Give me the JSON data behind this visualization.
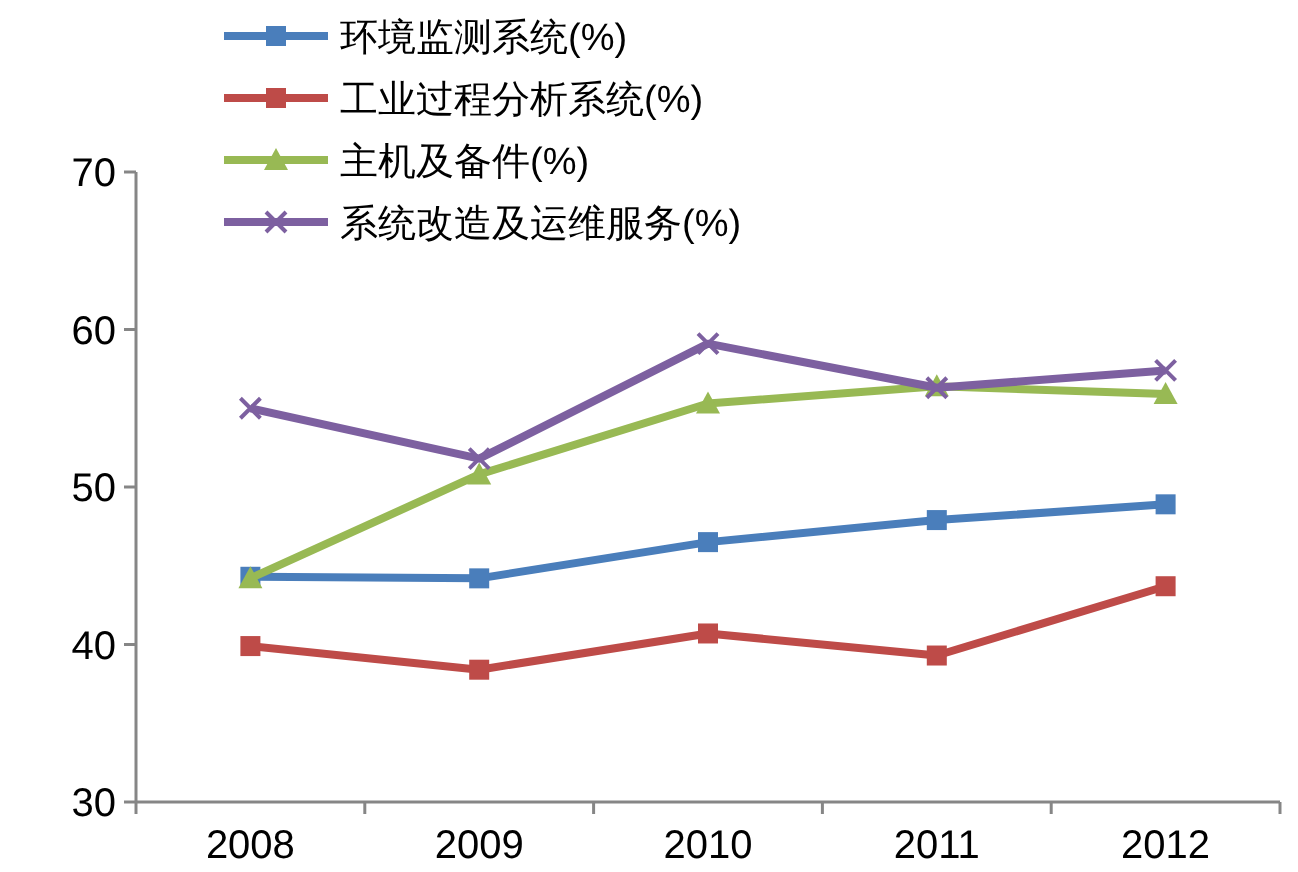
{
  "chart_data": {
    "type": "line",
    "categories": [
      "2008",
      "2009",
      "2010",
      "2011",
      "2012"
    ],
    "series": [
      {
        "name": "环境监测系统(%)",
        "color": "#4a7ebb",
        "marker": "square",
        "values": [
          44.3,
          44.2,
          46.5,
          47.9,
          48.9
        ]
      },
      {
        "name": "工业过程分析系统(%)",
        "color": "#be4b48",
        "marker": "square",
        "values": [
          39.9,
          38.4,
          40.7,
          39.3,
          43.7
        ]
      },
      {
        "name": "主机及备件(%)",
        "color": "#98b954",
        "marker": "triangle",
        "values": [
          44.2,
          50.8,
          55.3,
          56.4,
          55.9
        ]
      },
      {
        "name": "系统改造及运维服务(%)",
        "color": "#7d60a0",
        "marker": "cross",
        "values": [
          55.0,
          51.8,
          59.1,
          56.3,
          57.4
        ]
      }
    ],
    "ylim": [
      30,
      70
    ],
    "yticks": [
      30,
      40,
      50,
      60,
      70
    ],
    "grid": false,
    "legend": "top",
    "line_style": "solid"
  }
}
